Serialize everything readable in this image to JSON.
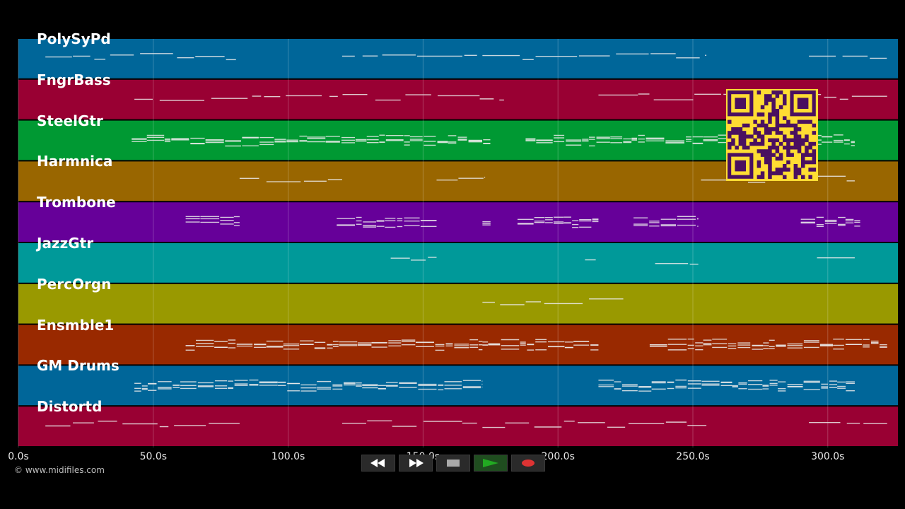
{
  "tracks": [
    {
      "name": "PolySyPd",
      "color": "#006699"
    },
    {
      "name": "FngrBass",
      "color": "#990033"
    },
    {
      "name": "SteelGtr",
      "color": "#009933"
    },
    {
      "name": "Harmnica",
      "color": "#996600"
    },
    {
      "name": "Trombone",
      "color": "#660099"
    },
    {
      "name": "JazzGtr",
      "color": "#009999"
    },
    {
      "name": "PercOrgn",
      "color": "#999900"
    },
    {
      "name": "Ensmble1",
      "color": "#992900"
    },
    {
      "name": "GM Drums",
      "color": "#006699"
    },
    {
      "name": "Distortd",
      "color": "#990033"
    }
  ],
  "timeline": {
    "min_seconds": 0,
    "max_seconds": 326,
    "ticks": [
      {
        "value": 0,
        "label": "0.0s"
      },
      {
        "value": 50,
        "label": "50.0s"
      },
      {
        "value": 100,
        "label": "100.0s"
      },
      {
        "value": 150,
        "label": "150.0s"
      },
      {
        "value": 200,
        "label": "200.0s"
      },
      {
        "value": 250,
        "label": "250.0s"
      },
      {
        "value": 300,
        "label": "300.0s"
      }
    ]
  },
  "footer": {
    "copyright": "© www.midifiles.com"
  },
  "transport": {
    "rewind_icon": "rewind-icon",
    "fast_forward_icon": "fast-forward-icon",
    "stop_icon": "stop-icon",
    "play_icon": "play-icon",
    "record_icon": "record-icon",
    "play_color": "#22aa22",
    "record_color": "#dd3333"
  },
  "qr": {
    "fg": "#4a1060",
    "bg": "#ffdd33"
  }
}
